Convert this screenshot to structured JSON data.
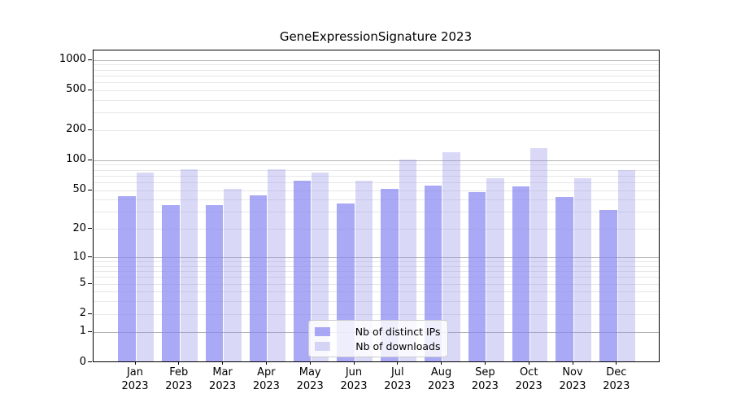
{
  "title": "GeneExpressionSignature 2023",
  "chart_data": {
    "type": "bar",
    "title": "GeneExpressionSignature 2023",
    "categories": [
      "Jan 2023",
      "Feb 2023",
      "Mar 2023",
      "Apr 2023",
      "May 2023",
      "Jun 2023",
      "Jul 2023",
      "Aug 2023",
      "Sep 2023",
      "Oct 2023",
      "Nov 2023",
      "Dec 2023"
    ],
    "series": [
      {
        "name": "Nb of distinct IPs",
        "color": "#a9a9f5",
        "values": [
          43,
          35,
          35,
          44,
          62,
          36,
          51,
          55,
          47,
          54,
          42,
          31
        ]
      },
      {
        "name": "Nb of downloads",
        "color": "#d9d9f7",
        "values": [
          75,
          80,
          51,
          80,
          75,
          62,
          100,
          120,
          65,
          130,
          65,
          79
        ]
      }
    ],
    "xlabel": "",
    "ylabel": "",
    "yscale": "log1p",
    "ylim": [
      0,
      1251
    ],
    "ytick_values": [
      0,
      1,
      2,
      5,
      10,
      20,
      50,
      100,
      200,
      500,
      1000
    ],
    "grid": true,
    "legend_position": "lower center"
  },
  "x_axis": {
    "months": [
      "Jan",
      "Feb",
      "Mar",
      "Apr",
      "May",
      "Jun",
      "Jul",
      "Aug",
      "Sep",
      "Oct",
      "Nov",
      "Dec"
    ],
    "year": "2023"
  },
  "y_axis": {
    "tick_labels": [
      "0",
      "1",
      "2",
      "5",
      "10",
      "20",
      "50",
      "100",
      "200",
      "500",
      "1000"
    ],
    "major_gridline_values": [
      1,
      10,
      100,
      1000
    ],
    "minor_gridline_decades": [
      1,
      10,
      100
    ]
  },
  "legend": {
    "items": [
      {
        "label": "Nb of distinct IPs",
        "swatch": "ip-series-swatch",
        "color": "#a9a9f5"
      },
      {
        "label": "Nb of downloads",
        "swatch": "downloads-series-swatch",
        "color": "#d9d9f7"
      }
    ]
  },
  "colors": {
    "ip_bar_perceived": "#a9a9f5",
    "downloads_bar_perceived": "#d9d9f7",
    "major_grid": "#b2b2b2",
    "minor_grid": "#e7e7e7",
    "spine": "#000000",
    "background": "#ffffff"
  }
}
